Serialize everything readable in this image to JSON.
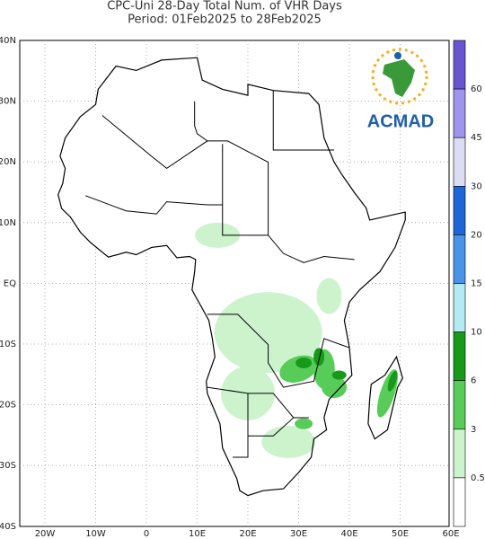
{
  "title": "CPC-Uni 28-Day Total Num. of VHR Days",
  "subtitle": "Period: 01Feb2025 to 28Feb2025",
  "map": {
    "lat_labels": [
      "40N",
      "30N",
      "20N",
      "10N",
      "EQ",
      "10S",
      "20S",
      "30S",
      "40S"
    ],
    "lon_labels": [
      "20W",
      "10W",
      "0",
      "10E",
      "20E",
      "30E",
      "40E",
      "50E",
      "60E"
    ]
  },
  "logo": {
    "text": "ACMAD"
  },
  "colorbar": {
    "labels": [
      "60",
      "45",
      "30",
      "20",
      "15",
      "10",
      "6",
      "3",
      "0.5"
    ],
    "colors": [
      "#6a55d0",
      "#9f95ec",
      "#dcdcf2",
      "#1e66d8",
      "#4b93e6",
      "#b4eaf2",
      "#179a1a",
      "#58cc58",
      "#cdf3cd",
      "#ffffff"
    ]
  }
}
